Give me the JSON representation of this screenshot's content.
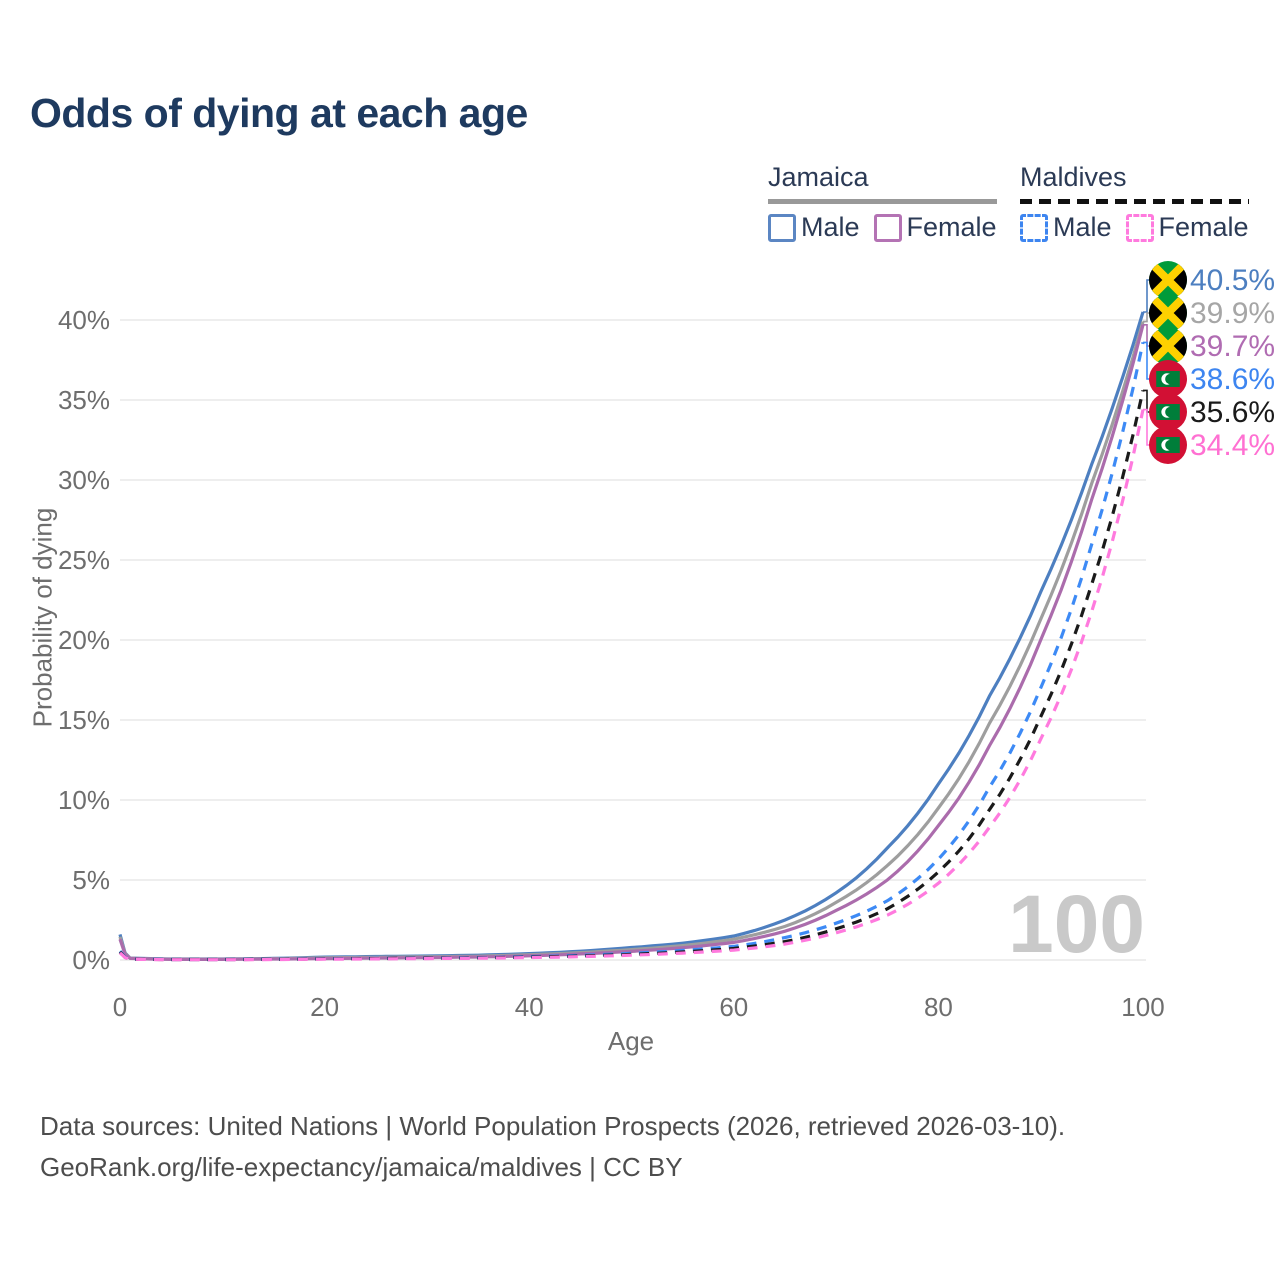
{
  "title": "Odds of dying at each age",
  "legend": {
    "groups": [
      {
        "country": "Jamaica",
        "line_style": "solid",
        "underline_color": "#999999",
        "items": [
          {
            "label": "Male",
            "color": "#5b86c3"
          },
          {
            "label": "Female",
            "color": "#b473b4"
          }
        ]
      },
      {
        "country": "Maldives",
        "line_style": "dashed",
        "underline_color": "#111111",
        "items": [
          {
            "label": "Male",
            "color": "#3d85f0"
          },
          {
            "label": "Female",
            "color": "#ff7ade"
          }
        ]
      }
    ]
  },
  "chart_data": {
    "type": "line",
    "title": "Odds of dying at each age",
    "xlabel": "Age",
    "ylabel": "Probability of dying",
    "xlim": [
      0,
      100
    ],
    "ylim": [
      0,
      42
    ],
    "grid": "horizontal",
    "legend_position": "top-right",
    "x_ticks": [
      0,
      20,
      40,
      60,
      80,
      100
    ],
    "y_ticks": [
      {
        "value": 0,
        "label": "0%"
      },
      {
        "value": 5,
        "label": "5%"
      },
      {
        "value": 10,
        "label": "10%"
      },
      {
        "value": 15,
        "label": "15%"
      },
      {
        "value": 20,
        "label": "20%"
      },
      {
        "value": 25,
        "label": "25%"
      },
      {
        "value": 30,
        "label": "30%"
      },
      {
        "value": 35,
        "label": "35%"
      },
      {
        "value": 40,
        "label": "40%"
      }
    ],
    "ages": [
      0,
      1,
      5,
      10,
      15,
      20,
      25,
      30,
      35,
      40,
      45,
      50,
      55,
      60,
      65,
      70,
      75,
      80,
      85,
      90,
      95,
      100
    ],
    "watermark": "100",
    "series": [
      {
        "name": "Jamaica Male",
        "country": "Jamaica",
        "sex": "Male",
        "color": "#4d7fc0",
        "dash": false,
        "flag": "jamaica",
        "end_value": 40.5,
        "end_label": "40.5%",
        "label_color": "#4d7fc0",
        "values": [
          1.6,
          0.12,
          0.06,
          0.06,
          0.1,
          0.18,
          0.22,
          0.25,
          0.3,
          0.4,
          0.55,
          0.78,
          1.05,
          1.5,
          2.5,
          4.2,
          7.0,
          11.0,
          16.5,
          23.0,
          31.0,
          40.5
        ]
      },
      {
        "name": "Jamaica Both sexes",
        "country": "Jamaica",
        "sex": "Both",
        "color": "#9e9e9e",
        "dash": false,
        "flag": "jamaica",
        "end_value": 39.9,
        "end_label": "39.9%",
        "label_color": "#a6a6a6",
        "values": [
          1.45,
          0.11,
          0.05,
          0.05,
          0.08,
          0.14,
          0.17,
          0.2,
          0.24,
          0.33,
          0.46,
          0.65,
          0.9,
          1.3,
          2.1,
          3.6,
          5.9,
          9.5,
          14.8,
          21.3,
          29.8,
          39.9
        ]
      },
      {
        "name": "Jamaica Female",
        "country": "Jamaica",
        "sex": "Female",
        "color": "#ab6cac",
        "dash": false,
        "flag": "jamaica",
        "end_value": 39.7,
        "end_label": "39.7%",
        "label_color": "#b06cb2",
        "values": [
          1.3,
          0.1,
          0.04,
          0.04,
          0.06,
          0.09,
          0.12,
          0.15,
          0.19,
          0.26,
          0.38,
          0.54,
          0.77,
          1.1,
          1.8,
          3.1,
          5.0,
          8.4,
          13.4,
          20.0,
          28.8,
          39.7
        ]
      },
      {
        "name": "Maldives Male",
        "country": "Maldives",
        "sex": "Male",
        "color": "#3d8af5",
        "dash": true,
        "flag": "maldives",
        "end_value": 38.6,
        "end_label": "38.6%",
        "label_color": "#3d85f0",
        "values": [
          0.55,
          0.06,
          0.03,
          0.03,
          0.05,
          0.08,
          0.1,
          0.12,
          0.15,
          0.21,
          0.29,
          0.42,
          0.6,
          0.85,
          1.4,
          2.3,
          3.7,
          6.3,
          10.8,
          17.0,
          26.0,
          38.6
        ]
      },
      {
        "name": "Maldives Both sexes",
        "country": "Maldives",
        "sex": "Both",
        "color": "#1a1a1a",
        "dash": true,
        "flag": "maldives",
        "end_value": 35.6,
        "end_label": "35.6%",
        "label_color": "#1a1a1a",
        "values": [
          0.5,
          0.05,
          0.03,
          0.03,
          0.04,
          0.07,
          0.09,
          0.11,
          0.13,
          0.18,
          0.25,
          0.35,
          0.5,
          0.72,
          1.15,
          1.95,
          3.2,
          5.5,
          9.4,
          15.2,
          23.5,
          35.6
        ]
      },
      {
        "name": "Maldives Female",
        "country": "Maldives",
        "sex": "Female",
        "color": "#ff7ade",
        "dash": true,
        "flag": "maldives",
        "end_value": 34.4,
        "end_label": "34.4%",
        "label_color": "#ff70d2",
        "values": [
          0.45,
          0.05,
          0.02,
          0.02,
          0.03,
          0.05,
          0.07,
          0.09,
          0.11,
          0.15,
          0.21,
          0.3,
          0.43,
          0.62,
          1.0,
          1.7,
          2.8,
          4.8,
          8.3,
          13.8,
          21.8,
          34.4
        ]
      }
    ]
  },
  "footer": {
    "line1": "Data sources: United Nations | World Population Prospects (2026, retrieved 2026-03-10).",
    "line2": "GeoRank.org/life-expectancy/jamaica/maldives | CC BY"
  }
}
